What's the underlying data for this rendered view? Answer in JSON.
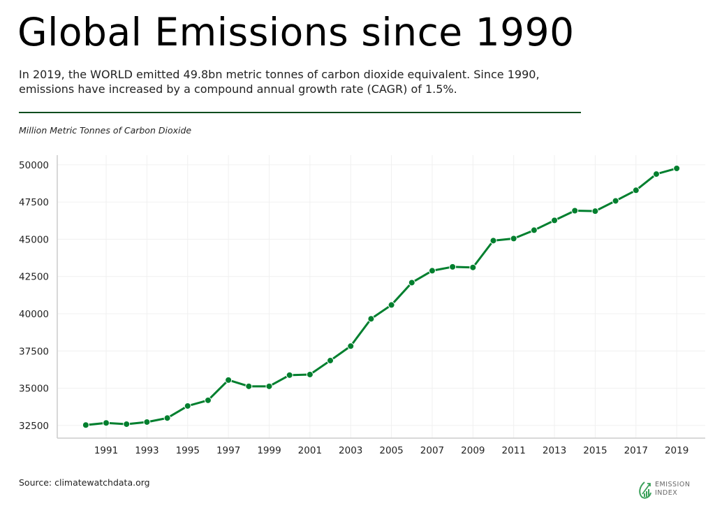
{
  "title": "Global Emissions since 1990",
  "subtitle": "In 2019, the WORLD emitted 49.8bn metric tonnes of carbon dioxide equivalent. Since 1990, emissions have increased by a compound annual growth rate (CAGR) of 1.5%.",
  "source": "Source: climatewatchdata.org",
  "logo": {
    "line1": "EMISSION",
    "line2": "INDEX"
  },
  "colors": {
    "line": "#007f2e",
    "rule": "#0b4d1e",
    "grid": "#f0f0f0"
  },
  "chart_data": {
    "type": "line",
    "title": "Global Emissions since 1990",
    "ylabel": "Million Metric Tonnes of Carbon Dioxide",
    "xlabel": "",
    "grid": true,
    "x": [
      1990,
      1991,
      1992,
      1993,
      1994,
      1995,
      1996,
      1997,
      1998,
      1999,
      2000,
      2001,
      2002,
      2003,
      2004,
      2005,
      2006,
      2007,
      2008,
      2009,
      2010,
      2011,
      2012,
      2013,
      2014,
      2015,
      2016,
      2017,
      2018,
      2019
    ],
    "values": [
      32530,
      32670,
      32590,
      32730,
      33000,
      33810,
      34190,
      35550,
      35130,
      35130,
      35880,
      35920,
      36860,
      37830,
      39660,
      40590,
      42090,
      42890,
      43150,
      43110,
      44910,
      45050,
      45610,
      46270,
      46920,
      46890,
      47580,
      48290,
      49380,
      49760
    ],
    "xticks": [
      "1991",
      "1993",
      "1995",
      "1997",
      "1999",
      "2001",
      "2003",
      "2005",
      "2007",
      "2009",
      "2011",
      "2013",
      "2015",
      "2017",
      "2019"
    ],
    "yticks": [
      "32500",
      "35000",
      "37500",
      "40000",
      "42500",
      "45000",
      "47500",
      "50000"
    ],
    "xlim": [
      1988.6,
      2020.4
    ],
    "ylim": [
      31650,
      50650
    ]
  }
}
